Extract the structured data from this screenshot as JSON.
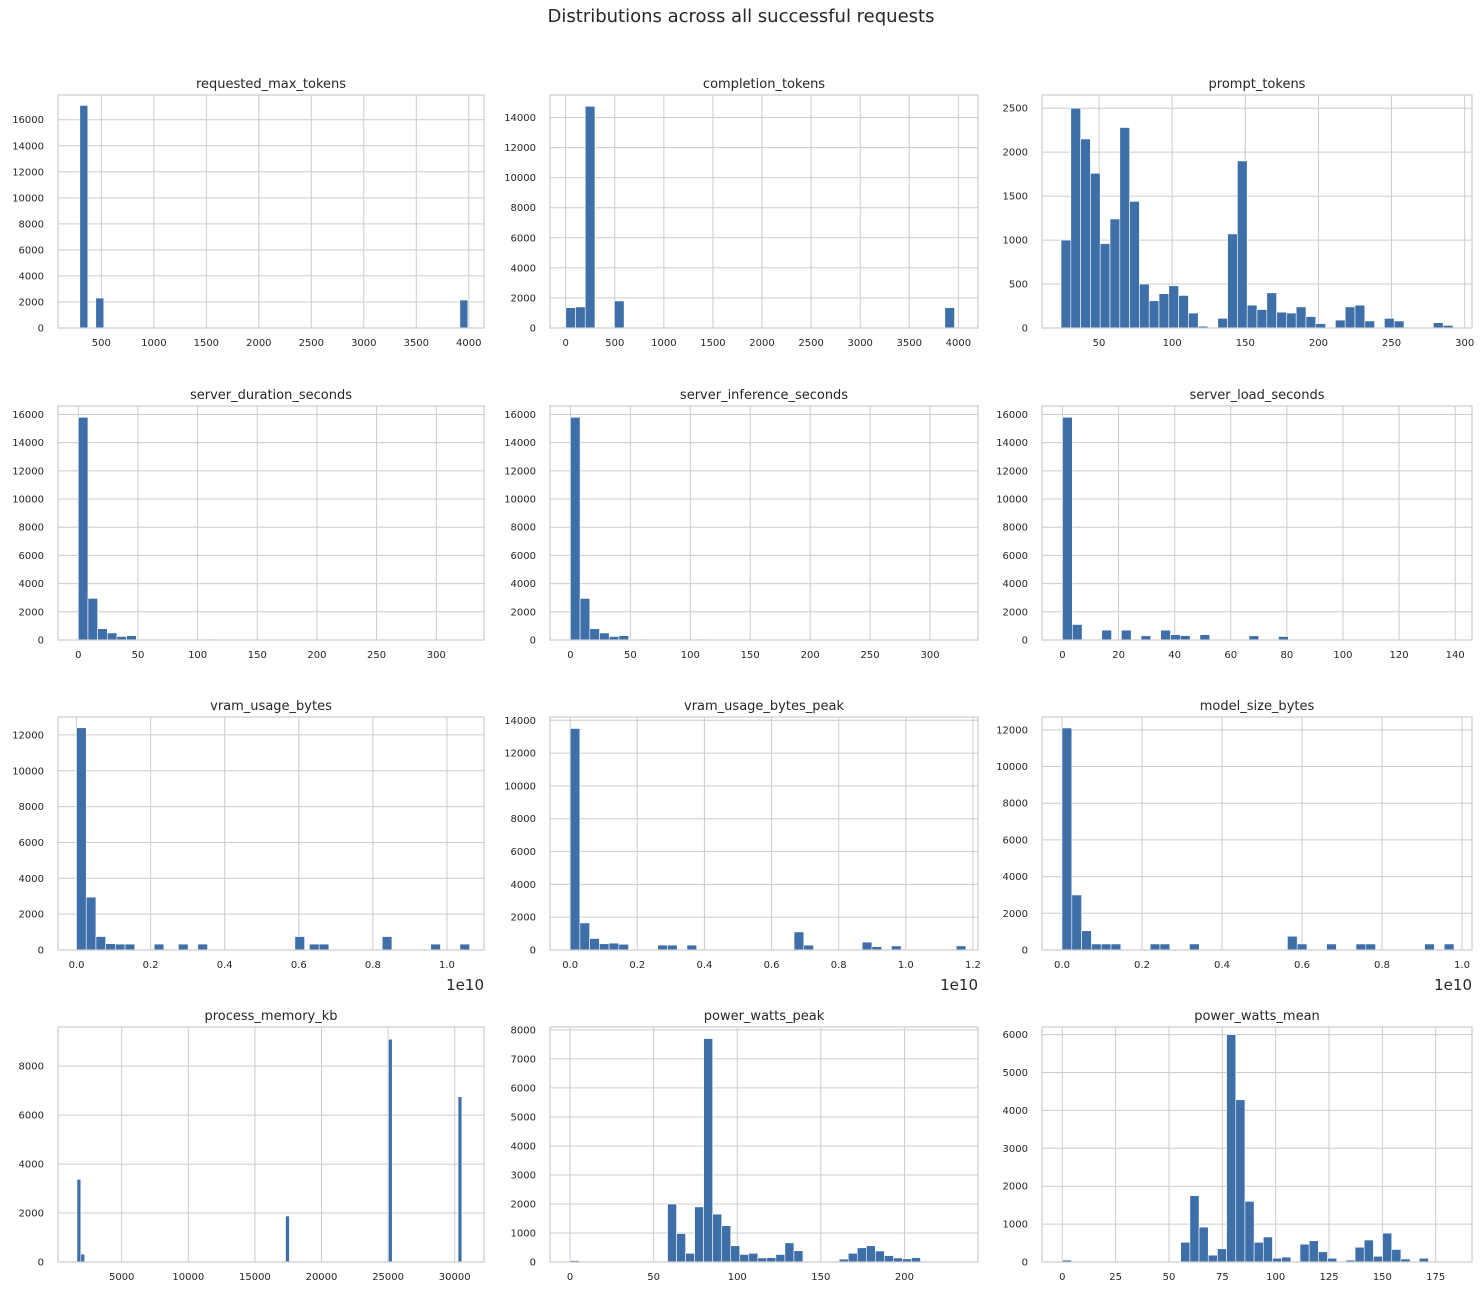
{
  "title": "Distributions across all successful requests",
  "colors": {
    "bar": "#3f6fa8",
    "grid": "#cccccc",
    "frame": "#cccccc",
    "text": "#262626"
  },
  "chart_data": [
    {
      "type": "bar",
      "title": "requested_max_tokens",
      "xlim": [
        87,
        4145
      ],
      "ylim": [
        0,
        17900
      ],
      "xticks": [
        500,
        1000,
        1500,
        2000,
        2500,
        3000,
        3500,
        4000
      ],
      "yticks": [
        0,
        2000,
        4000,
        6000,
        8000,
        10000,
        12000,
        14000,
        16000
      ],
      "bin_width": 76,
      "bins": [
        [
          295,
          17100
        ],
        [
          447,
          2300
        ],
        [
          3915,
          2150
        ]
      ]
    },
    {
      "type": "bar",
      "title": "completion_tokens",
      "xlim": [
        -160,
        4200
      ],
      "ylim": [
        0,
        15500
      ],
      "xticks": [
        0,
        500,
        1000,
        1500,
        2000,
        2500,
        3000,
        3500,
        4000
      ],
      "yticks": [
        0,
        2000,
        4000,
        6000,
        8000,
        10000,
        12000,
        14000
      ],
      "bin_width": 99,
      "bins": [
        [
          1,
          1350
        ],
        [
          100,
          1400
        ],
        [
          199,
          14750
        ],
        [
          298,
          40
        ],
        [
          496,
          1800
        ],
        [
          3862,
          1350
        ]
      ]
    },
    {
      "type": "bar",
      "title": "prompt_tokens",
      "xlim": [
        11,
        305
      ],
      "ylim": [
        0,
        2650
      ],
      "xticks": [
        50,
        100,
        150,
        200,
        250,
        300
      ],
      "yticks": [
        0,
        500,
        1000,
        1500,
        2000,
        2500
      ],
      "bin_width": 6.7,
      "bins": [
        [
          24,
          1000
        ],
        [
          30.7,
          2500
        ],
        [
          37.4,
          2150
        ],
        [
          44.1,
          1760
        ],
        [
          50.8,
          960
        ],
        [
          57.5,
          1240
        ],
        [
          64.2,
          2280
        ],
        [
          70.9,
          1440
        ],
        [
          77.6,
          500
        ],
        [
          84.3,
          310
        ],
        [
          91,
          390
        ],
        [
          97.7,
          480
        ],
        [
          104.4,
          370
        ],
        [
          111.1,
          170
        ],
        [
          117.8,
          20
        ],
        [
          124.5,
          0
        ],
        [
          131.2,
          110
        ],
        [
          137.9,
          1070
        ],
        [
          144.6,
          1900
        ],
        [
          151.3,
          260
        ],
        [
          158,
          210
        ],
        [
          164.7,
          400
        ],
        [
          171.4,
          180
        ],
        [
          178.1,
          170
        ],
        [
          184.8,
          240
        ],
        [
          191.5,
          130
        ],
        [
          198.2,
          50
        ],
        [
          204.9,
          0
        ],
        [
          211.6,
          90
        ],
        [
          218.3,
          240
        ],
        [
          225,
          260
        ],
        [
          231.7,
          80
        ],
        [
          238.4,
          0
        ],
        [
          245.1,
          110
        ],
        [
          251.8,
          80
        ],
        [
          258.5,
          0
        ],
        [
          265.2,
          0
        ],
        [
          271.9,
          0
        ],
        [
          278.6,
          60
        ],
        [
          285.3,
          30
        ]
      ]
    },
    {
      "type": "bar",
      "title": "server_duration_seconds",
      "xlim": [
        -17,
        340
      ],
      "ylim": [
        0,
        16600
      ],
      "xticks": [
        0,
        50,
        100,
        150,
        200,
        250,
        300
      ],
      "yticks": [
        0,
        2000,
        4000,
        6000,
        8000,
        10000,
        12000,
        14000,
        16000
      ],
      "bin_width": 8.1,
      "bins": [
        [
          0,
          15800
        ],
        [
          8.1,
          2950
        ],
        [
          16.2,
          800
        ],
        [
          24.3,
          500
        ],
        [
          32.4,
          250
        ],
        [
          40.5,
          310
        ],
        [
          48.6,
          50
        ],
        [
          56.7,
          40
        ],
        [
          64.8,
          30
        ],
        [
          72.9,
          30
        ],
        [
          81,
          20
        ],
        [
          89.1,
          20
        ],
        [
          97.2,
          20
        ],
        [
          105.3,
          60
        ],
        [
          113.4,
          20
        ],
        [
          121.5,
          20
        ],
        [
          129.6,
          10
        ],
        [
          137.7,
          10
        ],
        [
          145.8,
          10
        ],
        [
          153.9,
          10
        ],
        [
          162,
          10
        ],
        [
          170.1,
          10
        ],
        [
          178.2,
          10
        ],
        [
          186.3,
          10
        ],
        [
          194.4,
          10
        ],
        [
          202.5,
          10
        ],
        [
          210.6,
          10
        ],
        [
          218.7,
          10
        ],
        [
          226.8,
          10
        ],
        [
          234.9,
          10
        ],
        [
          243,
          10
        ],
        [
          251.1,
          10
        ],
        [
          259.2,
          10
        ],
        [
          267.3,
          10
        ],
        [
          275.4,
          10
        ],
        [
          283.5,
          10
        ],
        [
          291.6,
          10
        ],
        [
          299.7,
          10
        ],
        [
          307.8,
          10
        ],
        [
          315.9,
          10
        ]
      ]
    },
    {
      "type": "bar",
      "title": "server_inference_seconds",
      "xlim": [
        -17,
        340
      ],
      "ylim": [
        0,
        16600
      ],
      "xticks": [
        0,
        50,
        100,
        150,
        200,
        250,
        300
      ],
      "yticks": [
        0,
        2000,
        4000,
        6000,
        8000,
        10000,
        12000,
        14000,
        16000
      ],
      "bin_width": 8.1,
      "bins": [
        [
          0,
          15800
        ],
        [
          8.1,
          2950
        ],
        [
          16.2,
          800
        ],
        [
          24.3,
          500
        ],
        [
          32.4,
          250
        ],
        [
          40.5,
          310
        ],
        [
          48.6,
          50
        ],
        [
          56.7,
          40
        ],
        [
          64.8,
          30
        ],
        [
          72.9,
          30
        ],
        [
          81,
          20
        ],
        [
          89.1,
          20
        ],
        [
          97.2,
          20
        ],
        [
          105.3,
          60
        ],
        [
          113.4,
          20
        ],
        [
          121.5,
          20
        ],
        [
          129.6,
          10
        ],
        [
          137.7,
          10
        ],
        [
          145.8,
          10
        ],
        [
          153.9,
          10
        ],
        [
          162,
          10
        ],
        [
          170.1,
          10
        ],
        [
          178.2,
          10
        ],
        [
          186.3,
          10
        ],
        [
          194.4,
          10
        ],
        [
          202.5,
          10
        ],
        [
          210.6,
          10
        ],
        [
          218.7,
          10
        ],
        [
          226.8,
          10
        ],
        [
          234.9,
          10
        ],
        [
          243,
          10
        ],
        [
          251.1,
          10
        ],
        [
          259.2,
          10
        ],
        [
          267.3,
          10
        ],
        [
          275.4,
          10
        ],
        [
          283.5,
          10
        ],
        [
          291.6,
          10
        ],
        [
          299.7,
          10
        ],
        [
          307.8,
          10
        ],
        [
          315.9,
          10
        ]
      ]
    },
    {
      "type": "bar",
      "title": "server_load_seconds",
      "xlim": [
        -7.3,
        146
      ],
      "ylim": [
        0,
        16600
      ],
      "xticks": [
        0,
        20,
        40,
        60,
        80,
        100,
        120,
        140
      ],
      "yticks": [
        0,
        2000,
        4000,
        6000,
        8000,
        10000,
        12000,
        14000,
        16000
      ],
      "bin_width": 3.5,
      "bins": [
        [
          0,
          15800
        ],
        [
          3.5,
          1100
        ],
        [
          14,
          700
        ],
        [
          21,
          700
        ],
        [
          28,
          300
        ],
        [
          35,
          700
        ],
        [
          38.5,
          380
        ],
        [
          42,
          310
        ],
        [
          49,
          380
        ],
        [
          66.5,
          300
        ],
        [
          77,
          250
        ]
      ]
    },
    {
      "type": "bar",
      "title": "vram_usage_bytes",
      "xlim": [
        -0.05,
        1.1
      ],
      "ylim": [
        0,
        13000
      ],
      "x_offset_label": "1e10",
      "xticks": [
        0.0,
        0.2,
        0.4,
        0.6,
        0.8,
        1.0
      ],
      "xtick_labels": [
        "0.0",
        "0.2",
        "0.4",
        "0.6",
        "0.8",
        "1.0"
      ],
      "yticks": [
        0,
        2000,
        4000,
        6000,
        8000,
        10000,
        12000
      ],
      "bin_width": 0.0262,
      "bins": [
        [
          0.0,
          12400
        ],
        [
          0.0262,
          2950
        ],
        [
          0.0524,
          750
        ],
        [
          0.0786,
          350
        ],
        [
          0.1048,
          330
        ],
        [
          0.131,
          330
        ],
        [
          0.2096,
          330
        ],
        [
          0.2751,
          330
        ],
        [
          0.3275,
          330
        ],
        [
          0.5895,
          750
        ],
        [
          0.6288,
          330
        ],
        [
          0.655,
          330
        ],
        [
          0.8253,
          750
        ],
        [
          0.9563,
          330
        ],
        [
          1.0349,
          330
        ]
      ]
    },
    {
      "type": "bar",
      "title": "vram_usage_bytes_peak",
      "xlim": [
        -0.06,
        1.215
      ],
      "ylim": [
        0,
        14200
      ],
      "x_offset_label": "1e10",
      "xticks": [
        0.0,
        0.2,
        0.4,
        0.6,
        0.8,
        1.0,
        1.2
      ],
      "xtick_labels": [
        "0.0",
        "0.2",
        "0.4",
        "0.6",
        "0.8",
        "1.0",
        "1.2"
      ],
      "yticks": [
        0,
        2000,
        4000,
        6000,
        8000,
        10000,
        12000,
        14000
      ],
      "bin_width": 0.029,
      "bins": [
        [
          0.0,
          13500
        ],
        [
          0.029,
          1650
        ],
        [
          0.058,
          700
        ],
        [
          0.087,
          380
        ],
        [
          0.116,
          420
        ],
        [
          0.145,
          350
        ],
        [
          0.261,
          300
        ],
        [
          0.29,
          300
        ],
        [
          0.348,
          300
        ],
        [
          0.667,
          1100
        ],
        [
          0.696,
          300
        ],
        [
          0.87,
          480
        ],
        [
          0.899,
          200
        ],
        [
          0.957,
          250
        ],
        [
          1.15,
          250
        ]
      ]
    },
    {
      "type": "bar",
      "title": "model_size_bytes",
      "xlim": [
        -0.05,
        1.025
      ],
      "ylim": [
        0,
        12700
      ],
      "x_offset_label": "1e10",
      "xticks": [
        0.0,
        0.2,
        0.4,
        0.6,
        0.8,
        1.0
      ],
      "xtick_labels": [
        "0.0",
        "0.2",
        "0.4",
        "0.6",
        "0.8",
        "1.0"
      ],
      "yticks": [
        0,
        2000,
        4000,
        6000,
        8000,
        10000,
        12000
      ],
      "bin_width": 0.0245,
      "bins": [
        [
          0.0,
          12100
        ],
        [
          0.0245,
          3000
        ],
        [
          0.049,
          1050
        ],
        [
          0.0735,
          330
        ],
        [
          0.098,
          330
        ],
        [
          0.1225,
          330
        ],
        [
          0.2205,
          330
        ],
        [
          0.245,
          330
        ],
        [
          0.3185,
          330
        ],
        [
          0.5635,
          750
        ],
        [
          0.588,
          330
        ],
        [
          0.6615,
          330
        ],
        [
          0.735,
          330
        ],
        [
          0.7595,
          330
        ],
        [
          0.9065,
          330
        ],
        [
          0.9555,
          330
        ]
      ]
    },
    {
      "type": "bar",
      "title": "process_memory_kb",
      "xlim": [
        218,
        32200
      ],
      "ylim": [
        0,
        9600
      ],
      "xticks": [
        5000,
        10000,
        15000,
        20000,
        25000,
        30000
      ],
      "yticks": [
        0,
        2000,
        4000,
        6000,
        8000
      ],
      "bin_width": 290,
      "bins": [
        [
          1640,
          3380
        ],
        [
          1930,
          320
        ],
        [
          17300,
          1880
        ],
        [
          25020,
          9100
        ],
        [
          30250,
          6750
        ]
      ]
    },
    {
      "type": "bar",
      "title": "power_watts_peak",
      "xlim": [
        -12,
        244
      ],
      "ylim": [
        0,
        8100
      ],
      "xticks": [
        0,
        50,
        100,
        150,
        200
      ],
      "yticks": [
        0,
        1000,
        2000,
        3000,
        4000,
        5000,
        6000,
        7000,
        8000
      ],
      "bin_width": 5.4,
      "bins": [
        [
          0,
          50
        ],
        [
          58.3,
          2000
        ],
        [
          63.7,
          980
        ],
        [
          69.1,
          300
        ],
        [
          74.5,
          1900
        ],
        [
          79.9,
          7700
        ],
        [
          85.3,
          1650
        ],
        [
          90.7,
          1250
        ],
        [
          96.1,
          560
        ],
        [
          101.5,
          260
        ],
        [
          106.9,
          300
        ],
        [
          112.3,
          140
        ],
        [
          117.7,
          150
        ],
        [
          123.1,
          260
        ],
        [
          128.5,
          660
        ],
        [
          133.9,
          390
        ],
        [
          161,
          100
        ],
        [
          166.4,
          300
        ],
        [
          171.8,
          490
        ],
        [
          177.2,
          560
        ],
        [
          182.6,
          380
        ],
        [
          188,
          220
        ],
        [
          193.4,
          140
        ],
        [
          198.8,
          110
        ],
        [
          204.2,
          150
        ]
      ]
    },
    {
      "type": "bar",
      "title": "power_watts_mean",
      "xlim": [
        -9.5,
        192
      ],
      "ylim": [
        0,
        6200
      ],
      "xticks": [
        0,
        25,
        50,
        75,
        100,
        125,
        150,
        175
      ],
      "yticks": [
        0,
        1000,
        2000,
        3000,
        4000,
        5000,
        6000
      ],
      "bin_width": 4.3,
      "bins": [
        [
          0,
          50
        ],
        [
          55.5,
          520
        ],
        [
          59.8,
          1750
        ],
        [
          64.1,
          920
        ],
        [
          68.4,
          180
        ],
        [
          72.7,
          350
        ],
        [
          77,
          6000
        ],
        [
          81.3,
          4280
        ],
        [
          85.6,
          1600
        ],
        [
          89.9,
          520
        ],
        [
          94.2,
          660
        ],
        [
          98.5,
          100
        ],
        [
          102.8,
          130
        ],
        [
          111.4,
          470
        ],
        [
          115.7,
          560
        ],
        [
          120,
          270
        ],
        [
          124.3,
          100
        ],
        [
          132.9,
          50
        ],
        [
          137.2,
          390
        ],
        [
          141.5,
          580
        ],
        [
          145.8,
          150
        ],
        [
          150.1,
          760
        ],
        [
          154.4,
          330
        ],
        [
          158.7,
          80
        ],
        [
          167.3,
          100
        ]
      ]
    }
  ]
}
